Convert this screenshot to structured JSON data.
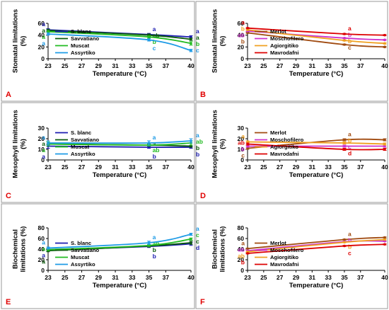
{
  "chart_data": [
    {
      "type": "line",
      "panel": "A",
      "ylabel": [
        "Stomatal limitations",
        "(%)"
      ],
      "xlabel": "Temperature (°C)",
      "xticks": [
        23,
        25,
        27,
        29,
        31,
        33,
        35,
        37,
        40
      ],
      "ylim": [
        0,
        60
      ],
      "yticks": [
        0,
        20,
        40,
        60
      ],
      "legend": "bottom-left",
      "x": [
        23,
        35,
        40
      ],
      "series": [
        {
          "name": "S. blanc",
          "color": "#1c1cb0",
          "values": [
            49,
            41,
            37
          ],
          "err": [
            2,
            2,
            2
          ],
          "sig": [
            "a",
            "a",
            "a"
          ]
        },
        {
          "name": "Savvatiano",
          "color": "#0a5a0a",
          "values": [
            48,
            40,
            33
          ],
          "err": [
            2,
            2,
            2
          ],
          "sig": [
            "a",
            "ab",
            "a"
          ]
        },
        {
          "name": "Muscat",
          "color": "#22bb22",
          "values": [
            46,
            37,
            26
          ],
          "err": [
            2,
            2,
            3
          ],
          "sig": [
            "a",
            "b",
            "b"
          ]
        },
        {
          "name": "Assyrtiko",
          "color": "#1e9be6",
          "values": [
            42,
            32,
            14
          ],
          "err": [
            2,
            2,
            2
          ],
          "sig": [
            "a",
            "c",
            "c"
          ]
        }
      ]
    },
    {
      "type": "line",
      "panel": "B",
      "ylabel": [
        "Stomatal limitations",
        "(%)"
      ],
      "xlabel": "Temperature (°C)",
      "xticks": [
        23,
        25,
        27,
        29,
        31,
        33,
        35,
        37,
        40
      ],
      "ylim": [
        0,
        60
      ],
      "yticks": [
        0,
        20,
        40,
        60
      ],
      "legend": "bottom-left",
      "x": [
        23,
        35,
        40
      ],
      "series": [
        {
          "name": "Merlot",
          "color": "#a04a10",
          "values": [
            44,
            24,
            20
          ],
          "err": [
            1,
            1,
            1
          ],
          "sig": [
            "b",
            "c",
            "c"
          ]
        },
        {
          "name": "Moschofilero",
          "color": "#cc33cc",
          "values": [
            47,
            35,
            32
          ],
          "err": [
            1,
            1,
            1
          ],
          "sig": [
            "ab",
            "b",
            "b"
          ]
        },
        {
          "name": "Agiorgitiko",
          "color": "#f0a020",
          "values": [
            49,
            31,
            26
          ],
          "err": [
            1,
            1,
            1
          ],
          "sig": [
            "b",
            "b",
            "b"
          ]
        },
        {
          "name": "Mavrodafni",
          "color": "#dd0000",
          "values": [
            52,
            42,
            40
          ],
          "err": [
            1,
            1,
            1
          ],
          "sig": [
            "a",
            "a",
            "a"
          ]
        }
      ]
    },
    {
      "type": "line",
      "panel": "C",
      "ylabel": [
        "Mesophyll limitations",
        "(%)"
      ],
      "xlabel": "Temperature (°C)",
      "xticks": [
        23,
        25,
        27,
        29,
        31,
        33,
        35,
        37,
        40
      ],
      "ylim": [
        0,
        30
      ],
      "yticks": [
        0,
        10,
        20,
        30
      ],
      "legend": "bottom-left",
      "x": [
        23,
        35,
        40
      ],
      "series": [
        {
          "name": "S. blanc",
          "color": "#1c1cb0",
          "values": [
            13,
            12,
            12
          ],
          "err": [
            2,
            1,
            1
          ],
          "sig": [
            "a",
            "b",
            "b"
          ]
        },
        {
          "name": "Savvatiano",
          "color": "#0a5a0a",
          "values": [
            15,
            14,
            13
          ],
          "err": [
            2,
            1,
            1
          ],
          "sig": [
            "a",
            "a",
            "b"
          ]
        },
        {
          "name": "Muscat",
          "color": "#22bb22",
          "values": [
            15,
            14,
            16
          ],
          "err": [
            2,
            1,
            2
          ],
          "sig": [
            "a",
            "ab",
            "ab"
          ]
        },
        {
          "name": "Assyrtiko",
          "color": "#1e9be6",
          "values": [
            16,
            16,
            18
          ],
          "err": [
            2,
            2,
            2
          ],
          "sig": [
            "a",
            "a",
            "a"
          ]
        }
      ]
    },
    {
      "type": "line",
      "panel": "D",
      "ylabel": [
        "Mesophyll limitations",
        "(%)"
      ],
      "xlabel": "Temperature (°C)",
      "xticks": [
        23,
        25,
        27,
        29,
        31,
        33,
        35,
        37,
        40
      ],
      "ylim": [
        0,
        30
      ],
      "yticks": [
        0,
        10,
        20,
        30
      ],
      "legend": "bottom-left",
      "x": [
        23,
        35,
        40
      ],
      "series": [
        {
          "name": "Merlot",
          "color": "#a04a10",
          "values": [
            11,
            19,
            19
          ],
          "err": [
            1,
            1,
            1
          ],
          "sig": [
            "c",
            "a",
            "a"
          ]
        },
        {
          "name": "Moschofilero",
          "color": "#cc33cc",
          "values": [
            13,
            13,
            13
          ],
          "err": [
            1,
            1,
            1
          ],
          "sig": [
            "b",
            "c",
            "b"
          ]
        },
        {
          "name": "Agiorgitiko",
          "color": "#f0a020",
          "values": [
            17,
            16,
            15
          ],
          "err": [
            1,
            1,
            1
          ],
          "sig": [
            "a",
            "b",
            "ab"
          ]
        },
        {
          "name": "Mavrodafni",
          "color": "#dd0000",
          "values": [
            15,
            10,
            10
          ],
          "err": [
            1,
            1,
            1
          ],
          "sig": [
            "ab",
            "d",
            "c"
          ]
        }
      ]
    },
    {
      "type": "line",
      "panel": "E",
      "ylabel": [
        "Biochemical",
        "limitations (%)"
      ],
      "xlabel": "Temperature (°C)",
      "xticks": [
        23,
        25,
        27,
        29,
        31,
        33,
        35,
        37,
        40
      ],
      "ylim": [
        0,
        80
      ],
      "yticks": [
        0,
        20,
        40,
        60,
        80
      ],
      "legend": "bottom-left",
      "x": [
        23,
        35,
        40
      ],
      "series": [
        {
          "name": "S. blanc",
          "color": "#1c1cb0",
          "values": [
            38,
            45,
            50
          ],
          "err": [
            2,
            2,
            3
          ],
          "sig": [
            "a",
            "b",
            "d"
          ]
        },
        {
          "name": "Savvatiano",
          "color": "#0a5a0a",
          "values": [
            37,
            46,
            52
          ],
          "err": [
            2,
            2,
            3
          ],
          "sig": [
            "a",
            "b",
            "c"
          ]
        },
        {
          "name": "Muscat",
          "color": "#22bb22",
          "values": [
            39,
            47,
            59
          ],
          "err": [
            2,
            2,
            2
          ],
          "sig": [
            "a",
            "ab",
            "c"
          ]
        },
        {
          "name": "Assyrtiko",
          "color": "#1e9be6",
          "values": [
            42,
            52,
            68
          ],
          "err": [
            2,
            3,
            2
          ],
          "sig": [
            "a",
            "a",
            "a"
          ]
        }
      ]
    },
    {
      "type": "line",
      "panel": "F",
      "ylabel": [
        "Biochemical",
        "limitations (%)"
      ],
      "xlabel": "Temperature (°C)",
      "xticks": [
        23,
        25,
        27,
        29,
        31,
        33,
        35,
        37,
        40
      ],
      "ylim": [
        0,
        80
      ],
      "yticks": [
        0,
        20,
        40,
        60,
        80
      ],
      "legend": "bottom-left",
      "x": [
        23,
        35,
        40
      ],
      "series": [
        {
          "name": "Merlot",
          "color": "#a04a10",
          "values": [
            41,
            58,
            62
          ],
          "err": [
            1,
            1,
            1
          ],
          "sig": [
            "a",
            "a",
            "a"
          ]
        },
        {
          "name": "Moschofilero",
          "color": "#cc33cc",
          "values": [
            37,
            54,
            55
          ],
          "err": [
            1,
            1,
            1
          ],
          "sig": [
            "ab",
            "b",
            "b"
          ]
        },
        {
          "name": "Agiorgitiko",
          "color": "#f0a020",
          "values": [
            35,
            53,
            58
          ],
          "err": [
            1,
            1,
            1
          ],
          "sig": [
            "ab",
            "b",
            "b"
          ]
        },
        {
          "name": "Mavrodafni",
          "color": "#dd0000",
          "values": [
            32,
            46,
            49
          ],
          "err": [
            1,
            1,
            1
          ],
          "sig": [
            "b",
            "c",
            "c"
          ]
        }
      ]
    }
  ]
}
